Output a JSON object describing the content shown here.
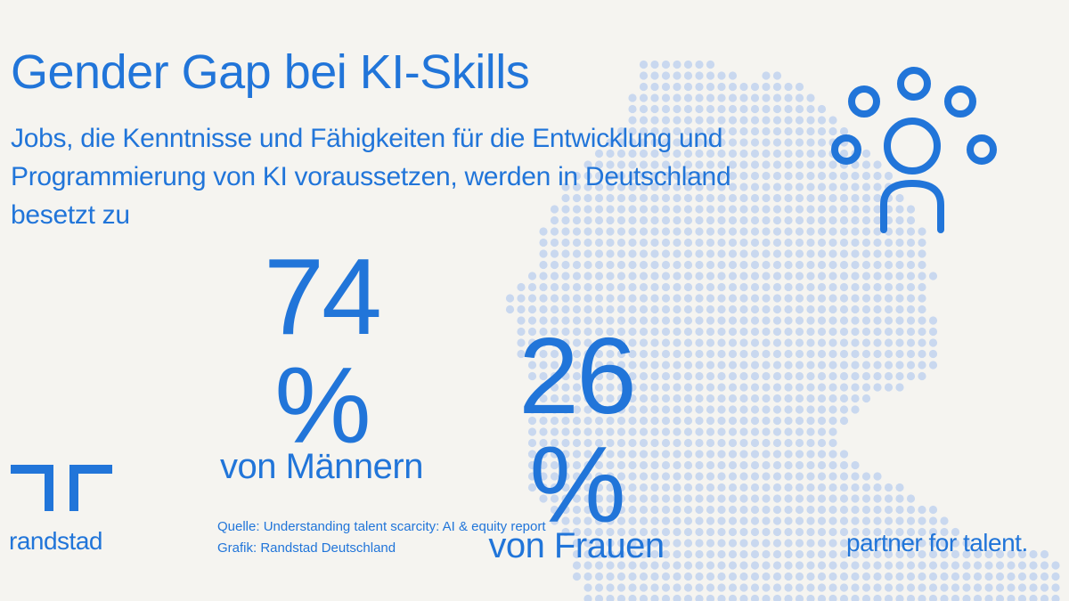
{
  "title": "Gender Gap bei KI-Skills",
  "subtitle": "Jobs, die Kenntnisse und Fähigkeiten für die Entwicklung und Programmierung von KI voraussetzen, werden in Deutschland besetzt zu",
  "stats": [
    {
      "value": "74 %",
      "label": "von Männern"
    },
    {
      "value": "26 %",
      "label": "von Frauen"
    }
  ],
  "source": {
    "line1": "Quelle: Understanding talent scarcity: AI & equity report",
    "line2": "Grafik: Randstad Deutschland"
  },
  "brand": {
    "name": "randstad",
    "claim": "partner for talent."
  },
  "colors": {
    "accent": "#2175d9",
    "map_dots": "#c9d8ef",
    "background": "#f5f4f0"
  },
  "icons": [
    "randstad-logo-icon",
    "people-network-icon",
    "germany-map-dots"
  ]
}
